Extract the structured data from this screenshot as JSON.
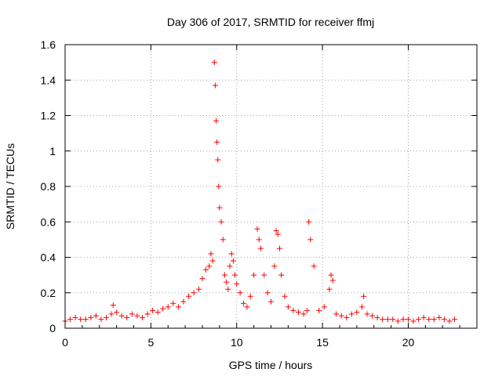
{
  "chart_data": {
    "type": "scatter",
    "title": "Day 306 of 2017, SRMTID for receiver ffmj",
    "xlabel": "GPS time / hours",
    "ylabel": "SRMTID / TECUs",
    "xlim": [
      0,
      24
    ],
    "ylim": [
      0,
      1.6
    ],
    "x_ticks": [
      "0",
      "5",
      "10",
      "15",
      "20"
    ],
    "y_ticks": [
      "0",
      "0.2",
      "0.4",
      "0.6",
      "0.8",
      "1",
      "1.2",
      "1.4",
      "1.6"
    ],
    "grid": true,
    "marker": "+",
    "series": [
      {
        "name": "SRMTID",
        "color": "#ff0000",
        "x": [
          0.0,
          0.3,
          0.6,
          0.9,
          1.2,
          1.5,
          1.8,
          2.1,
          2.4,
          2.7,
          2.8,
          3.0,
          3.3,
          3.6,
          3.9,
          4.2,
          4.5,
          4.8,
          5.1,
          5.4,
          5.7,
          6.0,
          6.3,
          6.6,
          6.9,
          7.2,
          7.5,
          7.8,
          8.0,
          8.2,
          8.4,
          8.5,
          8.6,
          8.7,
          8.75,
          8.8,
          8.85,
          8.9,
          8.95,
          9.0,
          9.1,
          9.2,
          9.3,
          9.4,
          9.5,
          9.6,
          9.7,
          9.8,
          9.9,
          10.0,
          10.2,
          10.4,
          10.6,
          10.8,
          11.0,
          11.2,
          11.3,
          11.4,
          11.6,
          11.8,
          12.0,
          12.2,
          12.3,
          12.4,
          12.5,
          12.6,
          12.8,
          13.0,
          13.3,
          13.6,
          13.9,
          14.1,
          14.2,
          14.3,
          14.5,
          14.8,
          15.1,
          15.4,
          15.5,
          15.6,
          15.8,
          16.1,
          16.4,
          16.7,
          17.0,
          17.3,
          17.4,
          17.6,
          17.9,
          18.2,
          18.5,
          18.8,
          19.1,
          19.4,
          19.7,
          20.0,
          20.3,
          20.6,
          20.9,
          21.2,
          21.5,
          21.8,
          22.1,
          22.4,
          22.7
        ],
        "values": [
          0.04,
          0.05,
          0.06,
          0.05,
          0.05,
          0.06,
          0.07,
          0.05,
          0.06,
          0.08,
          0.13,
          0.09,
          0.07,
          0.06,
          0.08,
          0.07,
          0.06,
          0.08,
          0.1,
          0.09,
          0.11,
          0.12,
          0.14,
          0.12,
          0.15,
          0.18,
          0.2,
          0.22,
          0.28,
          0.33,
          0.35,
          0.42,
          0.38,
          1.5,
          1.37,
          1.17,
          1.05,
          0.95,
          0.8,
          0.68,
          0.6,
          0.5,
          0.3,
          0.26,
          0.22,
          0.35,
          0.42,
          0.38,
          0.3,
          0.25,
          0.2,
          0.14,
          0.12,
          0.18,
          0.3,
          0.56,
          0.5,
          0.45,
          0.3,
          0.2,
          0.15,
          0.35,
          0.55,
          0.53,
          0.45,
          0.3,
          0.18,
          0.12,
          0.1,
          0.09,
          0.08,
          0.1,
          0.6,
          0.5,
          0.35,
          0.1,
          0.12,
          0.22,
          0.3,
          0.27,
          0.08,
          0.07,
          0.06,
          0.08,
          0.09,
          0.12,
          0.18,
          0.08,
          0.07,
          0.06,
          0.05,
          0.05,
          0.05,
          0.04,
          0.05,
          0.05,
          0.04,
          0.05,
          0.06,
          0.05,
          0.05,
          0.06,
          0.05,
          0.04,
          0.05
        ]
      }
    ]
  }
}
